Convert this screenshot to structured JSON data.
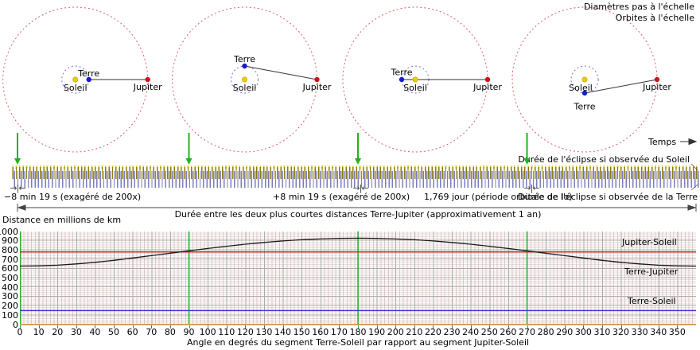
{
  "scale_notes": {
    "diameters": "Diamètres pas à l'échelle",
    "orbits": "Orbites à l'échelle"
  },
  "time_arrow_label": "Temps",
  "eclipse_strip": {
    "sun_duration_label": "Durée de l'éclipse si observée du Soleil",
    "earth_duration_label": "Durée de l'éclipse si observée de la Terre",
    "minus_offset_label": "−8 min 19 s (exagéré de 200x)",
    "plus_offset_label": "+8 min 19 s (exagéré de 200x)",
    "io_period_label": "1,769 jour (période orbitale de Io)",
    "synodic_span_label": "Durée entre les deux plus courtes distances Terre-Jupiter (approximativement 1 an)",
    "marker_glyph": "→|←"
  },
  "orbit_diagrams": [
    {
      "labels": {
        "sun": "Soleil",
        "earth": "Terre",
        "jupiter": "Jupiter"
      },
      "earth_angle_deg": 0
    },
    {
      "labels": {
        "sun": "Soleil",
        "earth": "Terre",
        "jupiter": "Jupiter"
      },
      "earth_angle_deg": 90
    },
    {
      "labels": {
        "sun": "Soleil",
        "earth": "Terre",
        "jupiter": "Jupiter"
      },
      "earth_angle_deg": 180
    },
    {
      "labels": {
        "sun": "Soleil",
        "earth": "Terre",
        "jupiter": "Jupiter"
      },
      "earth_angle_deg": 270
    }
  ],
  "colors": {
    "sun": "#eecb08",
    "earth": "#1a1acc",
    "jupiter": "#cc1515",
    "earth_orbit": "#7070e0",
    "jupiter_orbit": "#e05a6a",
    "guide_green": "#1eb41e",
    "strip_olive": "#8a7a14",
    "strip_yellow": "#e2ce3a",
    "strip_blue": "#7d7db8",
    "axis_tan": "#c9a35f"
  },
  "chart_data": {
    "type": "line",
    "title": "",
    "ylabel": "Distance en millions de km",
    "xlabel": "Angle en degrés du segment Terre-Soleil par rapport au segment Jupiter-Soleil",
    "xlim": [
      0,
      360
    ],
    "ylim": [
      0,
      1000
    ],
    "grid": true,
    "legend_position": "inline-right",
    "x_ticks": [
      0,
      10,
      20,
      30,
      40,
      50,
      60,
      70,
      80,
      90,
      100,
      110,
      120,
      130,
      140,
      150,
      160,
      170,
      180,
      190,
      200,
      210,
      220,
      230,
      240,
      250,
      260,
      270,
      280,
      290,
      300,
      310,
      320,
      330,
      340,
      350
    ],
    "y_ticks": [
      0,
      100,
      200,
      300,
      400,
      500,
      600,
      700,
      800,
      900,
      1000
    ],
    "green_guides_deg": [
      0,
      90,
      180,
      270
    ],
    "series": [
      {
        "name": "Jupiter-Soleil",
        "type": "constant",
        "value": 780,
        "color": "#cc2a2a"
      },
      {
        "name": "Terre-Jupiter",
        "type": "curve",
        "color": "#1a1a1a",
        "x": [
          0,
          10,
          20,
          30,
          40,
          50,
          60,
          70,
          80,
          90,
          100,
          110,
          120,
          130,
          140,
          150,
          160,
          170,
          180,
          190,
          200,
          210,
          220,
          230,
          240,
          250,
          260,
          270,
          280,
          290,
          300,
          310,
          320,
          330,
          340,
          350,
          360
        ],
        "values": [
          628,
          631,
          638,
          651,
          668,
          690,
          715,
          740,
          766,
          792,
          817,
          841,
          863,
          882,
          898,
          911,
          920,
          926,
          928,
          926,
          920,
          911,
          898,
          882,
          863,
          841,
          817,
          792,
          766,
          740,
          715,
          690,
          668,
          651,
          638,
          631,
          628
        ]
      },
      {
        "name": "Terre-Soleil",
        "type": "constant",
        "value": 150,
        "color": "#3a3acc"
      }
    ]
  }
}
